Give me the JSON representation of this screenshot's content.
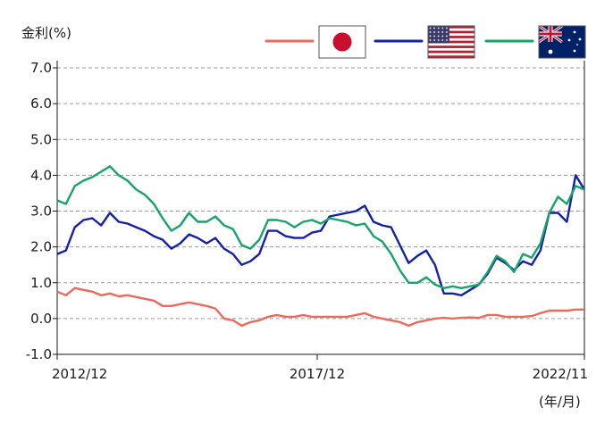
{
  "chart_data": {
    "type": "line",
    "ylabel": "金利(%)",
    "x_unit": "(年/月)",
    "ylim": [
      -1.0,
      7.0
    ],
    "y_ticks": [
      "7.0",
      "6.0",
      "5.0",
      "4.0",
      "3.0",
      "2.0",
      "1.0",
      "0.0",
      "-1.0"
    ],
    "x_ticks": [
      "2012/12",
      "2017/12",
      "2022/11"
    ],
    "grid": "horizontal-dashed",
    "legend_position": "top-right",
    "x": [
      "2012/12",
      "2013/02",
      "2013/04",
      "2013/06",
      "2013/08",
      "2013/10",
      "2013/12",
      "2014/02",
      "2014/04",
      "2014/06",
      "2014/08",
      "2014/10",
      "2014/12",
      "2015/02",
      "2015/04",
      "2015/06",
      "2015/08",
      "2015/10",
      "2015/12",
      "2016/02",
      "2016/04",
      "2016/06",
      "2016/08",
      "2016/10",
      "2016/12",
      "2017/02",
      "2017/04",
      "2017/06",
      "2017/08",
      "2017/10",
      "2017/12",
      "2018/02",
      "2018/04",
      "2018/06",
      "2018/08",
      "2018/10",
      "2018/12",
      "2019/02",
      "2019/04",
      "2019/06",
      "2019/08",
      "2019/10",
      "2019/12",
      "2020/02",
      "2020/04",
      "2020/06",
      "2020/08",
      "2020/10",
      "2020/12",
      "2021/02",
      "2021/04",
      "2021/06",
      "2021/08",
      "2021/10",
      "2021/12",
      "2022/02",
      "2022/04",
      "2022/06",
      "2022/08",
      "2022/10",
      "2022/11"
    ],
    "series": [
      {
        "key": "japan",
        "color": "#ec6a5c",
        "flag": "japan-flag",
        "values": [
          0.75,
          0.65,
          0.85,
          0.8,
          0.75,
          0.65,
          0.7,
          0.62,
          0.65,
          0.6,
          0.55,
          0.5,
          0.35,
          0.35,
          0.4,
          0.45,
          0.4,
          0.35,
          0.28,
          0.0,
          -0.05,
          -0.2,
          -0.1,
          -0.05,
          0.05,
          0.1,
          0.05,
          0.05,
          0.1,
          0.05,
          0.05,
          0.05,
          0.05,
          0.05,
          0.1,
          0.15,
          0.05,
          0.0,
          -0.05,
          -0.1,
          -0.2,
          -0.1,
          -0.05,
          0.0,
          0.02,
          0.0,
          0.02,
          0.03,
          0.02,
          0.1,
          0.1,
          0.05,
          0.05,
          0.05,
          0.07,
          0.15,
          0.22,
          0.22,
          0.22,
          0.25,
          0.25
        ]
      },
      {
        "key": "us",
        "color": "#1420a8",
        "flag": "us-flag",
        "values": [
          1.8,
          1.9,
          2.55,
          2.75,
          2.8,
          2.6,
          2.95,
          2.7,
          2.65,
          2.55,
          2.45,
          2.3,
          2.2,
          1.95,
          2.1,
          2.35,
          2.25,
          2.1,
          2.25,
          1.95,
          1.8,
          1.5,
          1.6,
          1.8,
          2.45,
          2.45,
          2.3,
          2.25,
          2.25,
          2.4,
          2.45,
          2.85,
          2.9,
          2.95,
          3.0,
          3.15,
          2.7,
          2.6,
          2.55,
          2.05,
          1.55,
          1.75,
          1.9,
          1.5,
          0.7,
          0.7,
          0.65,
          0.8,
          0.95,
          1.25,
          1.7,
          1.55,
          1.35,
          1.6,
          1.5,
          1.9,
          2.95,
          2.95,
          2.7,
          4.0,
          3.6
        ]
      },
      {
        "key": "australia",
        "color": "#16a46a",
        "flag": "australia-flag",
        "values": [
          3.3,
          3.2,
          3.7,
          3.85,
          3.95,
          4.1,
          4.25,
          4.0,
          3.85,
          3.6,
          3.45,
          3.2,
          2.8,
          2.45,
          2.6,
          2.95,
          2.7,
          2.7,
          2.85,
          2.6,
          2.5,
          2.05,
          1.95,
          2.2,
          2.75,
          2.75,
          2.7,
          2.55,
          2.7,
          2.75,
          2.65,
          2.8,
          2.75,
          2.7,
          2.6,
          2.65,
          2.3,
          2.15,
          1.8,
          1.35,
          1.0,
          1.0,
          1.15,
          0.95,
          0.85,
          0.9,
          0.85,
          0.9,
          0.95,
          1.3,
          1.75,
          1.6,
          1.3,
          1.8,
          1.7,
          2.1,
          2.95,
          3.4,
          3.2,
          3.7,
          3.6
        ]
      }
    ]
  }
}
